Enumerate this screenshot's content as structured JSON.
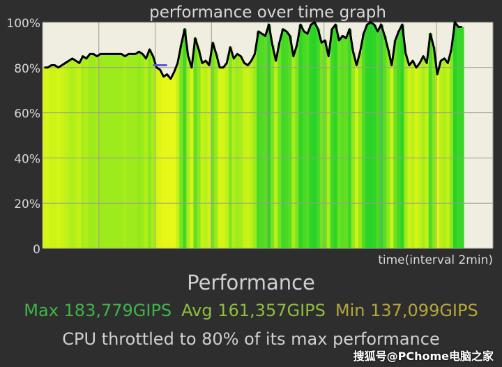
{
  "chart_data": {
    "type": "area",
    "title": "performance over time graph",
    "xlabel": "time(interval 2min)",
    "ylabel": "",
    "ylim": [
      0,
      100
    ],
    "yticks": [
      "0",
      "20%",
      "40%",
      "60%",
      "80%",
      "100%"
    ],
    "grid": true,
    "x_intervals": 8,
    "series": [
      {
        "values": [
          80,
          80,
          81,
          81,
          80,
          81,
          82,
          83,
          84,
          83,
          82,
          85,
          84,
          86,
          86,
          85,
          86,
          86,
          86,
          86,
          86,
          86,
          86,
          85,
          86,
          86,
          86,
          87,
          86,
          84,
          88,
          85,
          80,
          79,
          76,
          77,
          75,
          78,
          82,
          90,
          97,
          85,
          80,
          93,
          88,
          82,
          83,
          81,
          91,
          86,
          80,
          80,
          82,
          89,
          84,
          86,
          85,
          82,
          81,
          83,
          86,
          96,
          95,
          94,
          99,
          90,
          83,
          91,
          97,
          96,
          94,
          85,
          90,
          99,
          96,
          95,
          99,
          100,
          97,
          91,
          92,
          85,
          97,
          99,
          92,
          94,
          93,
          97,
          87,
          81,
          87,
          95,
          99,
          100,
          99,
          96,
          99,
          94,
          88,
          81,
          92,
          96,
          99,
          86,
          81,
          83,
          80,
          82,
          85,
          82,
          95,
          89,
          77,
          83,
          84,
          82,
          88,
          100,
          98,
          98
        ],
        "color": "#000000"
      },
      {
        "values": [
          81,
          81,
          81,
          81,
          81
        ],
        "x_start_index": 31,
        "color": "#5a5adf"
      }
    ]
  },
  "summary": {
    "heading": "Performance",
    "max": "Max 183,779GIPS",
    "avg": "Avg 161,357GIPS",
    "min": "Min 137,099GIPS",
    "note": "CPU throttled to 80% of its max performance"
  },
  "watermark": "搜狐号@PChome电脑之家",
  "colors": {
    "background": "#2e2e2e",
    "plot_background": "#efeee0",
    "grid": "#9a9a92",
    "max": "#3fb648",
    "avg": "#8fbf3e",
    "min": "#b6a73a"
  }
}
